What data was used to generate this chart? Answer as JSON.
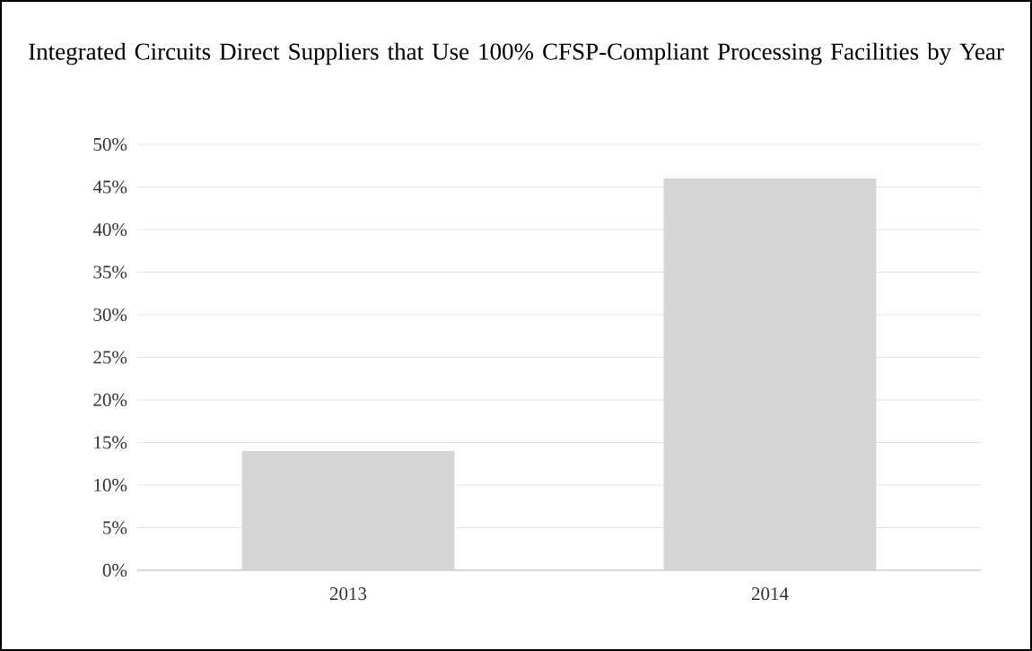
{
  "chart_data": {
    "type": "bar",
    "title": "Integrated Circuits Direct Suppliers that Use 100% CFSP-Compliant Processing Facilities by Year",
    "categories": [
      "2013",
      "2014"
    ],
    "values": [
      14,
      46
    ],
    "color": "#d6d6d6",
    "ylim": [
      0,
      50
    ],
    "yticks": [
      {
        "value": 0,
        "label": "0%"
      },
      {
        "value": 5,
        "label": "5%"
      },
      {
        "value": 10,
        "label": "10%"
      },
      {
        "value": 15,
        "label": "15%"
      },
      {
        "value": 20,
        "label": "20%"
      },
      {
        "value": 25,
        "label": "25%"
      },
      {
        "value": 30,
        "label": "30%"
      },
      {
        "value": 35,
        "label": "35%"
      },
      {
        "value": 40,
        "label": "40%"
      },
      {
        "value": 45,
        "label": "45%"
      },
      {
        "value": 50,
        "label": "50%"
      }
    ],
    "grid": "y"
  }
}
